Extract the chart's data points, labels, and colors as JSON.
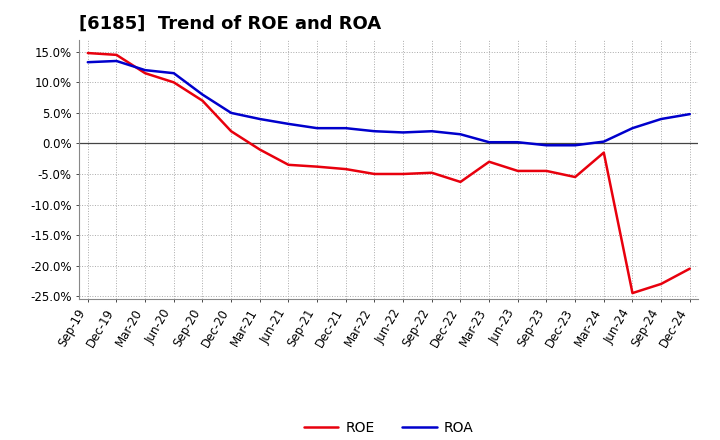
{
  "title": "[6185]  Trend of ROE and ROA",
  "labels": [
    "Sep-19",
    "Dec-19",
    "Mar-20",
    "Jun-20",
    "Sep-20",
    "Dec-20",
    "Mar-21",
    "Jun-21",
    "Sep-21",
    "Dec-21",
    "Mar-22",
    "Jun-22",
    "Sep-22",
    "Dec-22",
    "Mar-23",
    "Jun-23",
    "Sep-23",
    "Dec-23",
    "Mar-24",
    "Jun-24",
    "Sep-24",
    "Dec-24"
  ],
  "ROE": [
    14.8,
    14.5,
    11.5,
    10.0,
    7.0,
    2.0,
    -1.0,
    -3.5,
    -3.8,
    -4.2,
    -5.0,
    -5.0,
    -4.8,
    -6.3,
    -3.0,
    -4.5,
    -4.5,
    -5.5,
    -1.5,
    -24.5,
    -23.0,
    -20.5
  ],
  "ROA": [
    13.3,
    13.5,
    12.0,
    11.5,
    8.0,
    5.0,
    4.0,
    3.2,
    2.5,
    2.5,
    2.0,
    1.8,
    2.0,
    1.5,
    0.2,
    0.2,
    -0.3,
    -0.3,
    0.3,
    2.5,
    4.0,
    4.8
  ],
  "roe_color": "#e8000d",
  "roa_color": "#0000cc",
  "background_color": "#ffffff",
  "plot_bg_color": "#ffffff",
  "grid_color": "#aaaaaa",
  "ylim": [
    -25.5,
    17.0
  ],
  "yticks": [
    -25.0,
    -20.0,
    -15.0,
    -10.0,
    -5.0,
    0.0,
    5.0,
    10.0,
    15.0
  ],
  "line_width": 1.8,
  "title_fontsize": 13,
  "tick_fontsize": 8.5
}
